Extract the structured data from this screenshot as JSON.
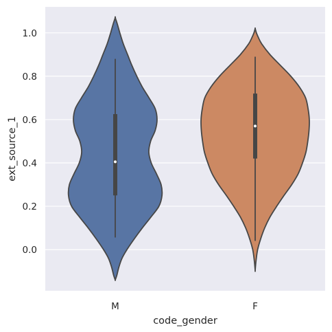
{
  "chart_data": {
    "type": "violin",
    "xlabel": "code_gender",
    "ylabel": "ext_source_1",
    "categories": [
      "M",
      "F"
    ],
    "ylim": [
      -0.19,
      1.12
    ],
    "yticks": [
      0.0,
      0.2,
      0.4,
      0.6,
      0.8,
      1.0
    ],
    "ytick_labels": [
      "0.0",
      "0.2",
      "0.4",
      "0.6",
      "0.8",
      "1.0"
    ],
    "grid": true,
    "colors": {
      "background": "#eaeaf2",
      "grid": "#ffffff",
      "outline": "#464646",
      "median": "#ffffff",
      "series": [
        "#5875a4",
        "#cc8963"
      ]
    },
    "violins": [
      {
        "name": "M",
        "range": [
          -0.14,
          1.07
        ],
        "whisker": [
          0.056,
          0.88
        ],
        "quartiles": [
          0.25,
          0.625
        ],
        "median": 0.405,
        "profile": [
          [
            -0.14,
            0.0
          ],
          [
            -0.12,
            0.027
          ],
          [
            -0.08,
            0.066
          ],
          [
            -0.04,
            0.121
          ],
          [
            0.0,
            0.209
          ],
          [
            0.05,
            0.341
          ],
          [
            0.1,
            0.484
          ],
          [
            0.15,
            0.637
          ],
          [
            0.2,
            0.78
          ],
          [
            0.25,
            0.835
          ],
          [
            0.3,
            0.819
          ],
          [
            0.35,
            0.736
          ],
          [
            0.4,
            0.643
          ],
          [
            0.45,
            0.6
          ],
          [
            0.5,
            0.632
          ],
          [
            0.55,
            0.714
          ],
          [
            0.6,
            0.747
          ],
          [
            0.65,
            0.714
          ],
          [
            0.7,
            0.604
          ],
          [
            0.75,
            0.484
          ],
          [
            0.8,
            0.385
          ],
          [
            0.85,
            0.297
          ],
          [
            0.9,
            0.22
          ],
          [
            0.95,
            0.143
          ],
          [
            1.0,
            0.082
          ],
          [
            1.04,
            0.038
          ],
          [
            1.07,
            0.0
          ]
        ]
      },
      {
        "name": "F",
        "range": [
          -0.095,
          1.02
        ],
        "whisker": [
          0.04,
          0.89
        ],
        "quartiles": [
          0.42,
          0.72
        ],
        "median": 0.57,
        "profile": [
          [
            -0.095,
            0.0
          ],
          [
            -0.05,
            0.016
          ],
          [
            0.0,
            0.044
          ],
          [
            0.05,
            0.099
          ],
          [
            0.1,
            0.17
          ],
          [
            0.15,
            0.264
          ],
          [
            0.2,
            0.385
          ],
          [
            0.25,
            0.516
          ],
          [
            0.3,
            0.654
          ],
          [
            0.35,
            0.769
          ],
          [
            0.4,
            0.846
          ],
          [
            0.45,
            0.907
          ],
          [
            0.5,
            0.94
          ],
          [
            0.55,
            0.962
          ],
          [
            0.6,
            0.967
          ],
          [
            0.65,
            0.945
          ],
          [
            0.7,
            0.901
          ],
          [
            0.75,
            0.791
          ],
          [
            0.8,
            0.637
          ],
          [
            0.85,
            0.451
          ],
          [
            0.9,
            0.264
          ],
          [
            0.95,
            0.115
          ],
          [
            0.98,
            0.055
          ],
          [
            1.0,
            0.022
          ],
          [
            1.02,
            0.0
          ]
        ]
      }
    ]
  }
}
